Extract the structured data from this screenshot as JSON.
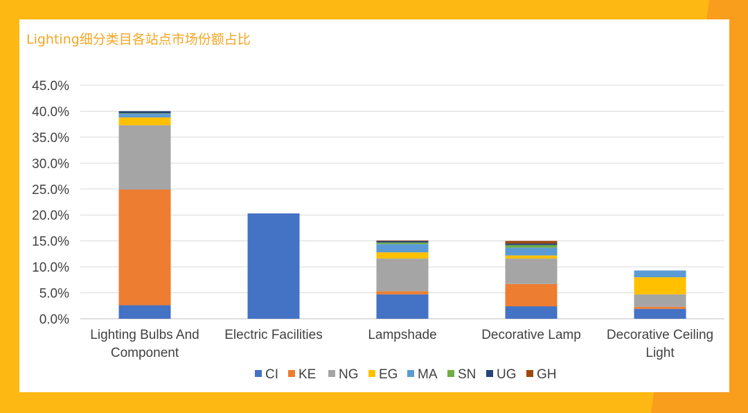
{
  "colors": {
    "background": "#FDB813",
    "card": "#FFFFFF",
    "title": "#F5A623",
    "grid": "#D9D9D9",
    "text": "#404040"
  },
  "chart_data": {
    "type": "bar",
    "stacked": true,
    "title": "Lighting细分类目各站点市场份额占比",
    "xlabel": "",
    "ylabel": "",
    "ylim": [
      0,
      45
    ],
    "yticks": [
      0,
      5,
      10,
      15,
      20,
      25,
      30,
      35,
      40,
      45
    ],
    "ytick_labels": [
      "0.0%",
      "5.0%",
      "10.0%",
      "15.0%",
      "20.0%",
      "25.0%",
      "30.0%",
      "35.0%",
      "40.0%",
      "45.0%"
    ],
    "grid": true,
    "legend_position": "bottom",
    "categories": [
      [
        "Lighting Bulbs And",
        "Component"
      ],
      [
        "Electric Facilities"
      ],
      [
        "Lampshade"
      ],
      [
        "Decorative Lamp"
      ],
      [
        "Decorative Ceiling",
        "Light"
      ]
    ],
    "series": [
      {
        "name": "CI",
        "color": "#4472C4",
        "values": [
          2.6,
          20.3,
          4.7,
          2.4,
          1.9
        ]
      },
      {
        "name": "KE",
        "color": "#ED7D31",
        "values": [
          22.3,
          0.0,
          0.6,
          4.3,
          0.4
        ]
      },
      {
        "name": "NG",
        "color": "#A5A5A5",
        "values": [
          12.4,
          0.0,
          6.3,
          4.9,
          2.4
        ]
      },
      {
        "name": "EG",
        "color": "#FFC000",
        "values": [
          1.5,
          0.0,
          1.2,
          0.6,
          3.3
        ]
      },
      {
        "name": "MA",
        "color": "#5B9BD5",
        "values": [
          0.7,
          0.0,
          1.6,
          1.5,
          1.3
        ]
      },
      {
        "name": "SN",
        "color": "#70AD47",
        "values": [
          0.1,
          0.0,
          0.3,
          0.5,
          0.0
        ]
      },
      {
        "name": "UG",
        "color": "#264478",
        "values": [
          0.4,
          0.0,
          0.3,
          0.3,
          0.0
        ]
      },
      {
        "name": "GH",
        "color": "#9E480E",
        "values": [
          0.0,
          0.0,
          0.1,
          0.5,
          0.0
        ]
      }
    ]
  }
}
